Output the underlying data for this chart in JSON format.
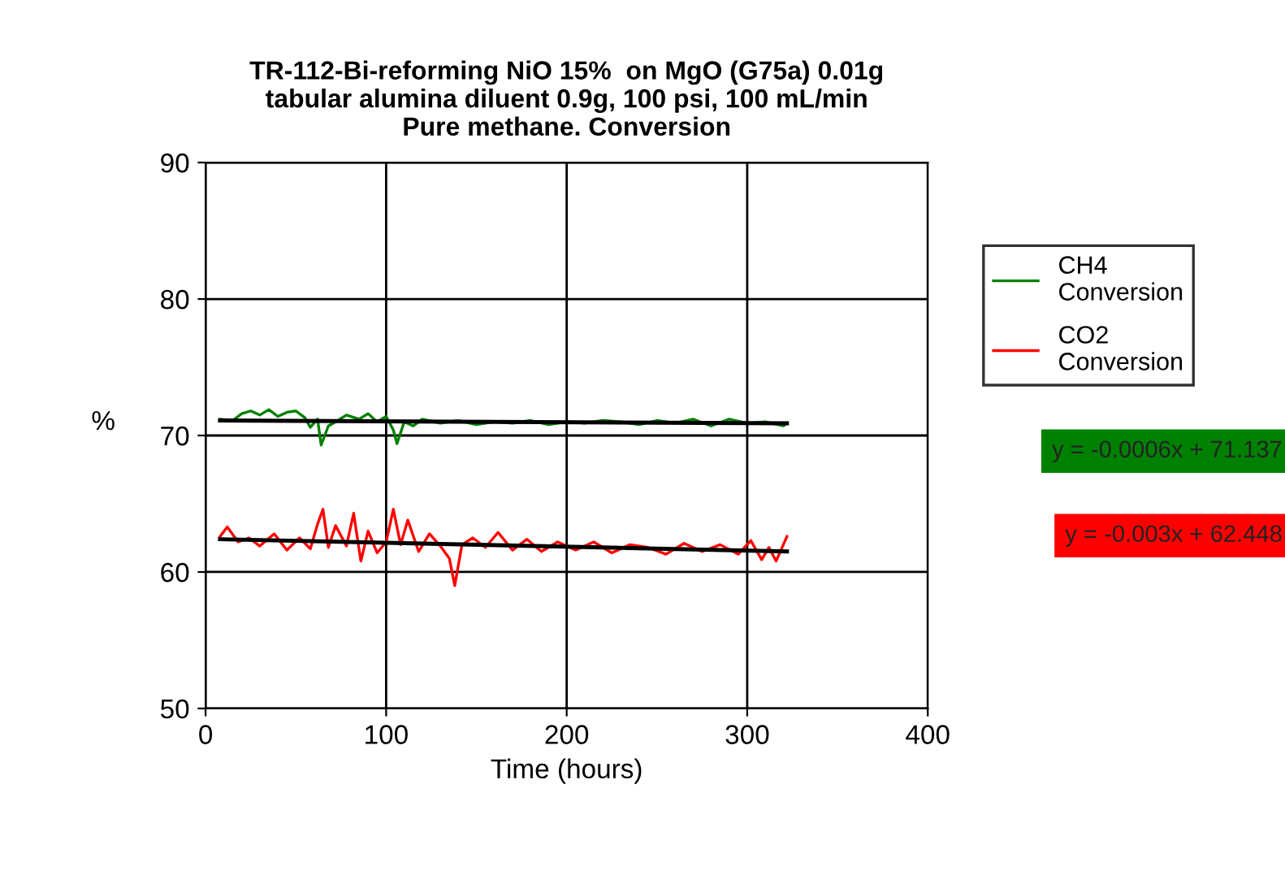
{
  "chart_data": {
    "type": "line",
    "title": "TR-112-Bi-reforming NiO 15%  on MgO (G75a) 0.01g\ntabular alumina diluent 0.9g, 100 psi, 100 mL/min\nPure methane. Conversion",
    "xlabel": "Time (hours)",
    "ylabel": "%",
    "xlim": [
      0,
      400
    ],
    "xticks": [
      0,
      100,
      200,
      300,
      400
    ],
    "ylim": [
      50,
      90
    ],
    "yticks": [
      50,
      60,
      70,
      80,
      90
    ],
    "grid": true,
    "legend": "right",
    "marker": "none",
    "line_style": "solid",
    "annotations": [
      "y = -0.0006x + 71.137",
      "y = -0.003x + 62.448"
    ],
    "series": [
      {
        "name": "CH4\nConversion",
        "color": "#008000",
        "x": [
          8,
          15,
          20,
          25,
          30,
          35,
          40,
          45,
          50,
          55,
          58,
          62,
          64,
          68,
          72,
          78,
          85,
          90,
          95,
          100,
          104,
          106,
          110,
          115,
          120,
          130,
          140,
          150,
          160,
          170,
          180,
          190,
          200,
          210,
          220,
          230,
          240,
          250,
          260,
          270,
          280,
          290,
          300,
          310,
          320,
          322
        ],
        "values": [
          71.2,
          71.1,
          71.6,
          71.8,
          71.5,
          71.9,
          71.4,
          71.7,
          71.8,
          71.3,
          70.6,
          71.2,
          69.3,
          70.7,
          71.0,
          71.5,
          71.2,
          71.6,
          71.0,
          71.4,
          70.4,
          69.4,
          71.0,
          70.7,
          71.2,
          70.9,
          71.1,
          70.8,
          71.0,
          70.9,
          71.1,
          70.8,
          71.0,
          70.9,
          71.1,
          71.0,
          70.8,
          71.1,
          70.9,
          71.2,
          70.7,
          71.2,
          70.9,
          71.0,
          70.7,
          70.9
        ]
      },
      {
        "name": "CO2\nConversion",
        "color": "#ff0000",
        "x": [
          8,
          12,
          18,
          24,
          30,
          38,
          45,
          52,
          58,
          62,
          65,
          68,
          72,
          78,
          82,
          86,
          90,
          95,
          100,
          104,
          108,
          112,
          118,
          124,
          130,
          135,
          138,
          142,
          148,
          155,
          162,
          170,
          178,
          186,
          195,
          205,
          215,
          225,
          235,
          245,
          255,
          265,
          275,
          285,
          295,
          302,
          308,
          312,
          316,
          320,
          322
        ],
        "values": [
          62.6,
          63.3,
          62.2,
          62.5,
          61.9,
          62.8,
          61.6,
          62.5,
          61.7,
          63.5,
          64.6,
          61.8,
          63.4,
          61.9,
          64.3,
          60.8,
          63.0,
          61.4,
          62.2,
          64.6,
          62.0,
          63.8,
          61.5,
          62.8,
          61.9,
          61.0,
          59.0,
          62.0,
          62.5,
          61.8,
          62.9,
          61.6,
          62.4,
          61.5,
          62.2,
          61.6,
          62.2,
          61.4,
          62.0,
          61.8,
          61.3,
          62.1,
          61.5,
          62.0,
          61.3,
          62.3,
          60.9,
          61.8,
          60.8,
          62.0,
          62.6
        ]
      },
      {
        "type": "line",
        "color": "#000000",
        "x": [
          8,
          322
        ],
        "values": [
          71.1,
          70.9
        ]
      },
      {
        "type": "line",
        "color": "#000000",
        "x": [
          8,
          322
        ],
        "values": [
          62.4,
          61.5
        ]
      }
    ]
  }
}
